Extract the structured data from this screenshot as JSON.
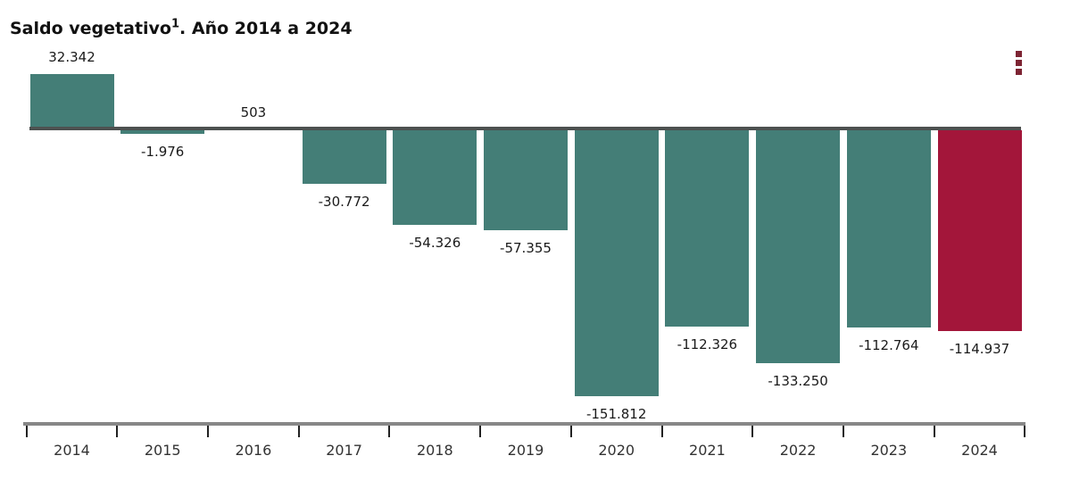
{
  "header": {
    "title_main": "Saldo vegetativo",
    "title_sup": "1",
    "title_rest": ". Año 2014 a 2024"
  },
  "menu": {
    "icon": "kebab-menu-icon",
    "color": "#7d2433"
  },
  "chart_data": {
    "type": "bar",
    "title": "Saldo vegetativo1. Año 2014 a 2024",
    "categories": [
      "2014",
      "2015",
      "2016",
      "2017",
      "2018",
      "2019",
      "2020",
      "2021",
      "2022",
      "2023",
      "2024"
    ],
    "values": [
      32342,
      -1976,
      503,
      -30772,
      -54326,
      -57355,
      -151812,
      -112326,
      -133250,
      -112764,
      -114937
    ],
    "value_labels": [
      "32.342",
      "-1.976",
      "503",
      "-30.772",
      "-54.326",
      "-57.355",
      "-151.812",
      "-112.326",
      "-133.250",
      "-112.764",
      "-114.937"
    ],
    "bar_color": "#447e77",
    "highlight_color": "#a3163a",
    "highlight_index": 10,
    "baseline": 0,
    "xlabel": "",
    "ylabel": "",
    "grid": false,
    "legend": false,
    "value_labels_shown": true,
    "axis_color": "#878787",
    "zero_line_color": "#4d5150"
  }
}
